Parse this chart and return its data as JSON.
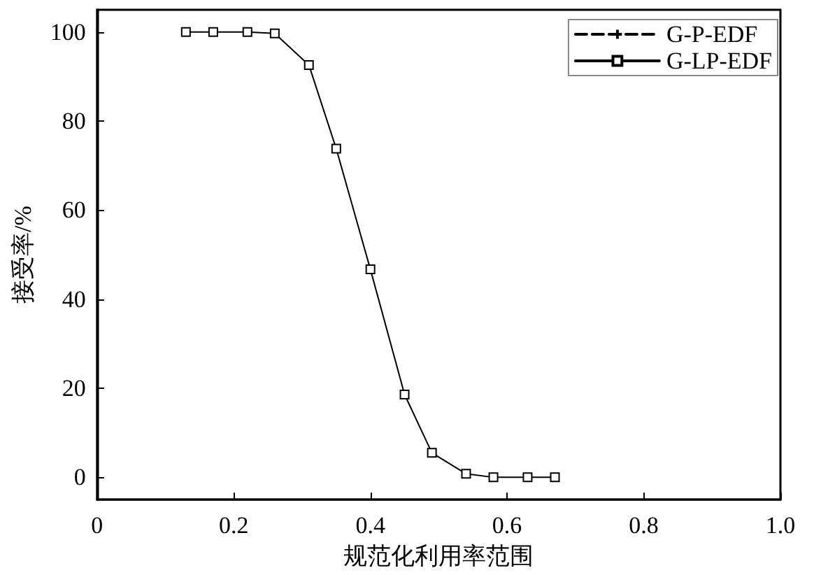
{
  "chart_data": {
    "type": "line",
    "xlabel": "规范化利用率范围",
    "ylabel": "接受率/%",
    "x": [
      0.13,
      0.17,
      0.22,
      0.26,
      0.31,
      0.35,
      0.4,
      0.45,
      0.49,
      0.54,
      0.58,
      0.63,
      0.67
    ],
    "series": [
      {
        "name": "G-P-EDF",
        "color": "#000000",
        "marker": "cross",
        "line_style": "dashed",
        "values": [
          null,
          null,
          null,
          null,
          null,
          null,
          null,
          null,
          null,
          null,
          null,
          null,
          null
        ]
      },
      {
        "name": "G-LP-EDF",
        "color": "#000000",
        "marker": "square",
        "line_style": "solid",
        "values": [
          100,
          100,
          100,
          99.7,
          92.6,
          73.8,
          46.7,
          18.6,
          5.5,
          0.8,
          0,
          0,
          0
        ]
      }
    ],
    "xlim": [
      0,
      1
    ],
    "xticks": [
      0,
      0.2,
      0.4,
      0.6,
      0.8,
      {
        "value": 1,
        "label": "1.0"
      }
    ],
    "ylim": [
      -5,
      105
    ],
    "yticks": [
      0,
      20,
      40,
      60,
      80,
      100
    ],
    "grid": false,
    "legend": "top right"
  }
}
